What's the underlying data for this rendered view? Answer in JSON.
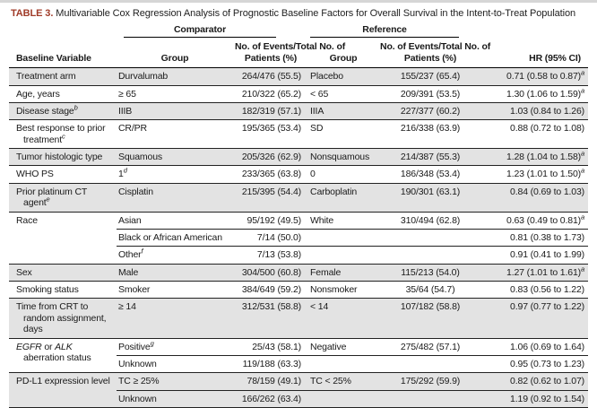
{
  "colors": {
    "table_label_accent": "#a03b28",
    "row_shading": "#e3e3e3",
    "rule": "#222222"
  },
  "table": {
    "label": "TABLE 3.",
    "title": "Multivariable Cox Regression Analysis of Prognostic Baseline Factors for Overall Survival in the Intent-to-Treat Population",
    "spanners": {
      "comparator": "Comparator",
      "reference": "Reference"
    },
    "columns": {
      "baseline_variable": "Baseline Variable",
      "group": "Group",
      "events_line1": "No. of Events/Total No. of",
      "events_line2": "Patients (%)",
      "hr": "HR (95% CI)"
    },
    "groups": [
      {
        "variable": "Treatment arm",
        "shaded": true,
        "rows": [
          {
            "group": "Durvalumab",
            "events": "264/476 (55.5)",
            "ref_group": "Placebo",
            "ref_events": "155/237 (65.4)",
            "hr": "0.71 (0.58 to 0.87)",
            "hr_sup": "a"
          }
        ]
      },
      {
        "variable": "Age, years",
        "shaded": false,
        "rows": [
          {
            "group": "≥ 65",
            "events": "210/322 (65.2)",
            "ref_group": "< 65",
            "ref_events": "209/391 (53.5)",
            "hr": "1.30 (1.06 to 1.59)",
            "hr_sup": "a"
          }
        ]
      },
      {
        "variable": "Disease stage",
        "variable_sup": "b",
        "shaded": true,
        "rows": [
          {
            "group": "IIIB",
            "events": "182/319 (57.1)",
            "ref_group": "IIIA",
            "ref_events": "227/377 (60.2)",
            "hr": "1.03 (0.84 to 1.26)"
          }
        ]
      },
      {
        "variable": "Best response to prior treatment",
        "variable_sup": "c",
        "shaded": false,
        "rows": [
          {
            "group": "CR/PR",
            "events": "195/365 (53.4)",
            "ref_group": "SD",
            "ref_events": "216/338 (63.9)",
            "hr": "0.88 (0.72 to 1.08)"
          }
        ]
      },
      {
        "variable": "Tumor histologic type",
        "shaded": true,
        "rows": [
          {
            "group": "Squamous",
            "events": "205/326 (62.9)",
            "ref_group": "Nonsquamous",
            "ref_events": "214/387 (55.3)",
            "hr": "1.28 (1.04 to 1.58)",
            "hr_sup": "a"
          }
        ]
      },
      {
        "variable": "WHO PS",
        "shaded": false,
        "rows": [
          {
            "group": "1",
            "group_sup": "d",
            "events": "233/365 (63.8)",
            "ref_group": "0",
            "ref_events": "186/348 (53.4)",
            "hr": "1.23 (1.01 to 1.50)",
            "hr_sup": "a"
          }
        ]
      },
      {
        "variable": "Prior platinum CT agent",
        "variable_sup": "e",
        "shaded": true,
        "rows": [
          {
            "group": "Cisplatin",
            "events": "215/395 (54.4)",
            "ref_group": "Carboplatin",
            "ref_events": "190/301 (63.1)",
            "hr": "0.84 (0.69 to 1.03)"
          }
        ]
      },
      {
        "variable": "Race",
        "shaded": false,
        "rows": [
          {
            "group": "Asian",
            "events": "95/192 (49.5)",
            "ref_group": "White",
            "ref_events": "310/494 (62.8)",
            "hr": "0.63 (0.49 to 0.81)",
            "hr_sup": "a"
          },
          {
            "group": "Black or African American",
            "events": "7/14 (50.0)",
            "ref_group": "",
            "ref_events": "",
            "hr": "0.81 (0.38 to 1.73)"
          },
          {
            "group": "Other",
            "group_sup": "f",
            "events": "7/13 (53.8)",
            "ref_group": "",
            "ref_events": "",
            "hr": "0.91 (0.41 to 1.99)"
          }
        ]
      },
      {
        "variable": "Sex",
        "shaded": true,
        "rows": [
          {
            "group": "Male",
            "events": "304/500 (60.8)",
            "ref_group": "Female",
            "ref_events": "115/213 (54.0)",
            "hr": "1.27 (1.01 to 1.61)",
            "hr_sup": "a"
          }
        ]
      },
      {
        "variable": "Smoking status",
        "shaded": false,
        "rows": [
          {
            "group": "Smoker",
            "events": "384/649 (59.2)",
            "ref_group": "Nonsmoker",
            "ref_events": "35/64 (54.7)",
            "hr": "0.83 (0.56 to 1.22)"
          }
        ]
      },
      {
        "variable": "Time from CRT to random assignment, days",
        "shaded": true,
        "rows": [
          {
            "group": "≥ 14",
            "events": "312/531 (58.8)",
            "ref_group": "< 14",
            "ref_events": "107/182 (58.8)",
            "hr": "0.97 (0.77 to 1.22)"
          }
        ]
      },
      {
        "variable": "EGFR or ALK aberration status",
        "variable_rich": [
          {
            "text": "EGFR",
            "italic": true
          },
          {
            "text": " or ",
            "italic": false
          },
          {
            "text": "ALK",
            "italic": true
          },
          {
            "text": " aberration status",
            "italic": false
          }
        ],
        "shaded": false,
        "rows": [
          {
            "group": "Positive",
            "group_sup": "g",
            "events": "25/43 (58.1)",
            "ref_group": "Negative",
            "ref_events": "275/482 (57.1)",
            "hr": "1.06 (0.69 to 1.64)"
          },
          {
            "group": "Unknown",
            "events": "119/188 (63.3)",
            "ref_group": "",
            "ref_events": "",
            "hr": "0.95 (0.73 to 1.23)"
          }
        ]
      },
      {
        "variable": "PD-L1 expression level",
        "shaded": true,
        "rows": [
          {
            "group": "TC ≥ 25%",
            "events": "78/159 (49.1)",
            "ref_group": "TC < 25%",
            "ref_events": "175/292 (59.9)",
            "hr": "0.82 (0.62 to 1.07)"
          },
          {
            "group": "Unknown",
            "events": "166/262 (63.4)",
            "ref_group": "",
            "ref_events": "",
            "hr": "1.19 (0.92 to 1.54)"
          }
        ]
      }
    ]
  }
}
